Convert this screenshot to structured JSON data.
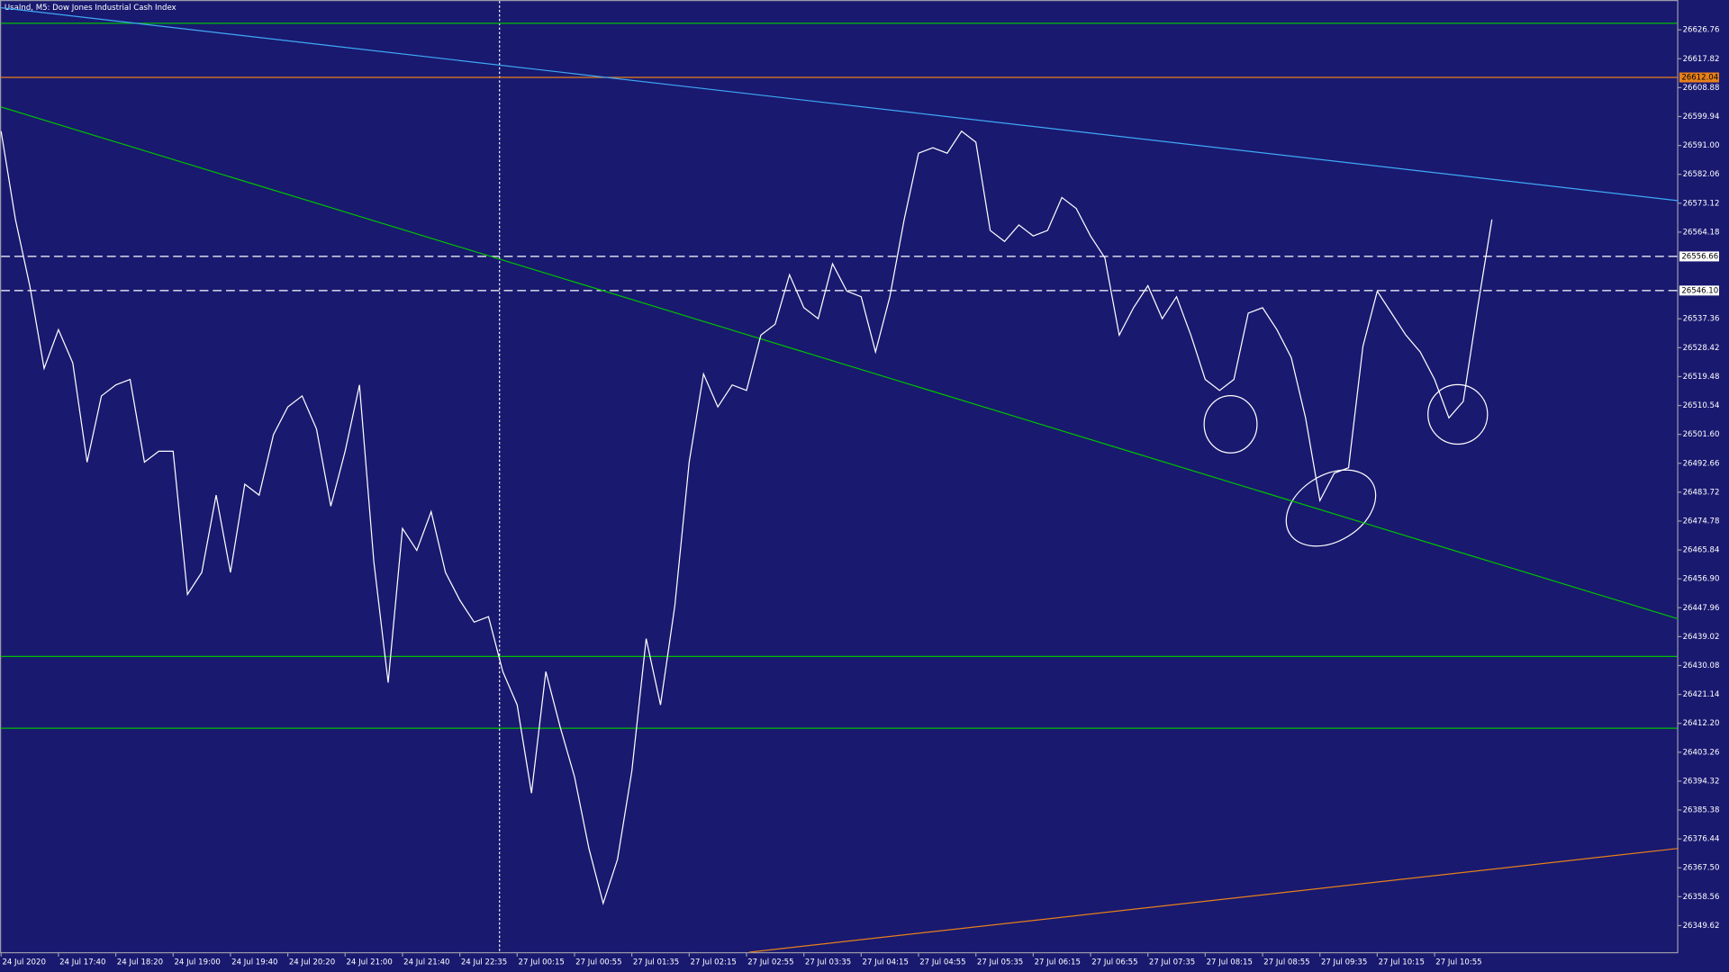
{
  "chart_data": {
    "type": "line",
    "title": "UsaInd, M5: Dow Jones Industrial Cash Index",
    "background": "#191970",
    "categories": [
      "24 Jul 2020",
      null,
      null,
      null,
      "24 Jul 17:40",
      null,
      null,
      null,
      "24 Jul 18:20",
      null,
      null,
      null,
      "24 Jul 19:00",
      null,
      null,
      null,
      "24 Jul 19:40",
      null,
      null,
      null,
      "24 Jul 20:20",
      null,
      null,
      null,
      "24 Jul 21:00",
      null,
      null,
      null,
      "24 Jul 21:40",
      null,
      null,
      null,
      "24 Jul 22:35",
      null,
      null,
      null,
      "27 Jul 00:15",
      null,
      null,
      null,
      "27 Jul 00:55",
      null,
      null,
      null,
      "27 Jul 01:35",
      null,
      null,
      null,
      "27 Jul 02:15",
      null,
      null,
      null,
      "27 Jul 02:55",
      null,
      null,
      null,
      "27 Jul 03:35",
      null,
      null,
      null,
      "27 Jul 04:15",
      null,
      null,
      null,
      "27 Jul 04:55",
      null,
      null,
      null,
      "27 Jul 05:35",
      null,
      null,
      null,
      "27 Jul 06:15",
      null,
      null,
      null,
      "27 Jul 06:55",
      null,
      null,
      null,
      "27 Jul 07:35",
      null,
      null,
      null,
      "27 Jul 08:15",
      null,
      null,
      null,
      "27 Jul 08:55",
      null,
      null,
      null,
      "27 Jul 09:35",
      null,
      null,
      null,
      "27 Jul 10:15",
      null,
      null,
      null,
      "27 Jul 10:55",
      null,
      null,
      null,
      null
    ],
    "series": [
      {
        "color": "#ffffff",
        "values": [
          26595.4,
          26568.1,
          26547.6,
          26522.0,
          26534.0,
          26523.7,
          26493.0,
          26513.5,
          26516.9,
          26518.6,
          26493.0,
          26496.4,
          26496.4,
          26452.1,
          26458.9,
          26482.8,
          26458.9,
          26486.2,
          26482.8,
          26501.5,
          26510.1,
          26513.5,
          26503.3,
          26479.4,
          26496.4,
          26516.9,
          26462.3,
          26424.8,
          26472.5,
          26465.7,
          26477.7,
          26458.9,
          26450.3,
          26443.5,
          26445.2,
          26428.2,
          26417.9,
          26390.6,
          26428.2,
          26411.1,
          26395.7,
          26373.6,
          26356.5,
          26370.1,
          26397.4,
          26438.4,
          26417.9,
          26448.6,
          26493.0,
          26520.3,
          26510.1,
          26516.9,
          26515.2,
          26532.3,
          26535.7,
          26551.0,
          26540.8,
          26537.4,
          26554.4,
          26545.9,
          26544.2,
          26527.1,
          26544.2,
          26568.1,
          26588.6,
          26590.3,
          26588.6,
          26595.4,
          26592.0,
          26564.7,
          26561.3,
          26566.4,
          26563.0,
          26564.7,
          26574.9,
          26571.5,
          26563.0,
          26556.2,
          26532.3,
          26540.8,
          26547.6,
          26537.4,
          26544.2,
          26532.3,
          26518.6,
          26515.2,
          26518.6,
          26539.1,
          26540.8,
          26534.0,
          26525.4,
          26506.7,
          26481.1,
          26489.6,
          26491.3,
          26528.8,
          26545.9,
          26539.1,
          26532.3,
          26527.1,
          26518.6,
          26506.7,
          26511.8,
          26540.8,
          26568.1
        ]
      }
    ],
    "ylim": [
      26341.4,
      26636.0
    ],
    "yticks": [
      {
        "value": 26349.62,
        "label": "26349.62"
      },
      {
        "value": 26358.56,
        "label": "26358.56"
      },
      {
        "value": 26367.5,
        "label": "26367.50"
      },
      {
        "value": 26376.44,
        "label": "26376.44"
      },
      {
        "value": 26385.38,
        "label": "26385.38"
      },
      {
        "value": 26394.32,
        "label": "26394.32"
      },
      {
        "value": 26403.26,
        "label": "26403.26"
      },
      {
        "value": 26412.2,
        "label": "26412.20"
      },
      {
        "value": 26421.14,
        "label": "26421.14"
      },
      {
        "value": 26430.08,
        "label": "26430.08"
      },
      {
        "value": 26439.02,
        "label": "26439.02"
      },
      {
        "value": 26447.96,
        "label": "26447.96"
      },
      {
        "value": 26456.9,
        "label": "26456.90"
      },
      {
        "value": 26465.84,
        "label": "26465.84"
      },
      {
        "value": 26474.78,
        "label": "26474.78"
      },
      {
        "value": 26483.72,
        "label": "26483.72"
      },
      {
        "value": 26492.66,
        "label": "26492.66"
      },
      {
        "value": 26501.6,
        "label": "26501.60"
      },
      {
        "value": 26510.54,
        "label": "26510.54"
      },
      {
        "value": 26519.48,
        "label": "26519.48"
      },
      {
        "value": 26528.42,
        "label": "26528.42"
      },
      {
        "value": 26537.36,
        "label": "26537.36"
      },
      {
        "value": 26564.18,
        "label": "26564.18"
      },
      {
        "value": 26573.12,
        "label": "26573.12"
      },
      {
        "value": 26582.06,
        "label": "26582.06"
      },
      {
        "value": 26591.0,
        "label": "26591.00"
      },
      {
        "value": 26599.94,
        "label": "26599.94"
      },
      {
        "value": 26608.88,
        "label": "26608.88"
      },
      {
        "value": 26617.82,
        "label": "26617.82"
      },
      {
        "value": 26626.76,
        "label": "26626.76"
      }
    ],
    "hlines": [
      {
        "value": 26628.8,
        "color": "#00c000",
        "style": "solid"
      },
      {
        "value": 26612.04,
        "label": "26612.04",
        "color": "#e8801a",
        "style": "solid"
      },
      {
        "value": 26556.66,
        "label": "26556.66",
        "color": "#ffffff",
        "style": "dashed"
      },
      {
        "value": 26546.1,
        "label": "26546.10",
        "color": "#ffffff",
        "style": "dashed"
      },
      {
        "value": 26432.9,
        "color": "#00c000",
        "style": "solid"
      },
      {
        "value": 26410.7,
        "color": "#00c000",
        "style": "solid"
      }
    ],
    "trendlines": [
      {
        "start": [
          0,
          26633.6
        ],
        "end": [
          117,
          26573.9
        ],
        "color": "#3fa9f5"
      },
      {
        "start": [
          0,
          26602.9
        ],
        "end": [
          117,
          26444.5
        ],
        "color": "#00c000"
      },
      {
        "start": [
          52.2,
          26341.4
        ],
        "end": [
          117,
          26373.5
        ],
        "color": "#e8801a"
      }
    ]
  }
}
